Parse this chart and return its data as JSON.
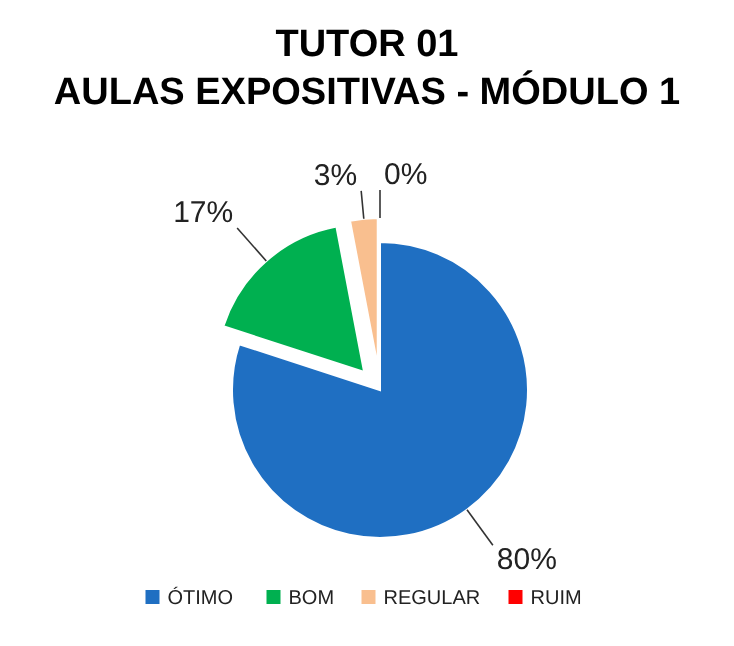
{
  "chart_data": {
    "type": "pie",
    "title": "TUTOR 01\nAULAS EXPOSITIVAS - MÓDULO 1",
    "categories": [
      "ÓTIMO",
      "BOM",
      "REGULAR",
      "RUIM"
    ],
    "values": [
      80,
      17,
      3,
      0
    ],
    "colors": [
      "#1f6fc2",
      "#00b050",
      "#f9bf8f",
      "#ff0000"
    ],
    "value_labels": [
      "80%",
      "17%",
      "3%",
      "0%"
    ],
    "legend": "bottom"
  }
}
